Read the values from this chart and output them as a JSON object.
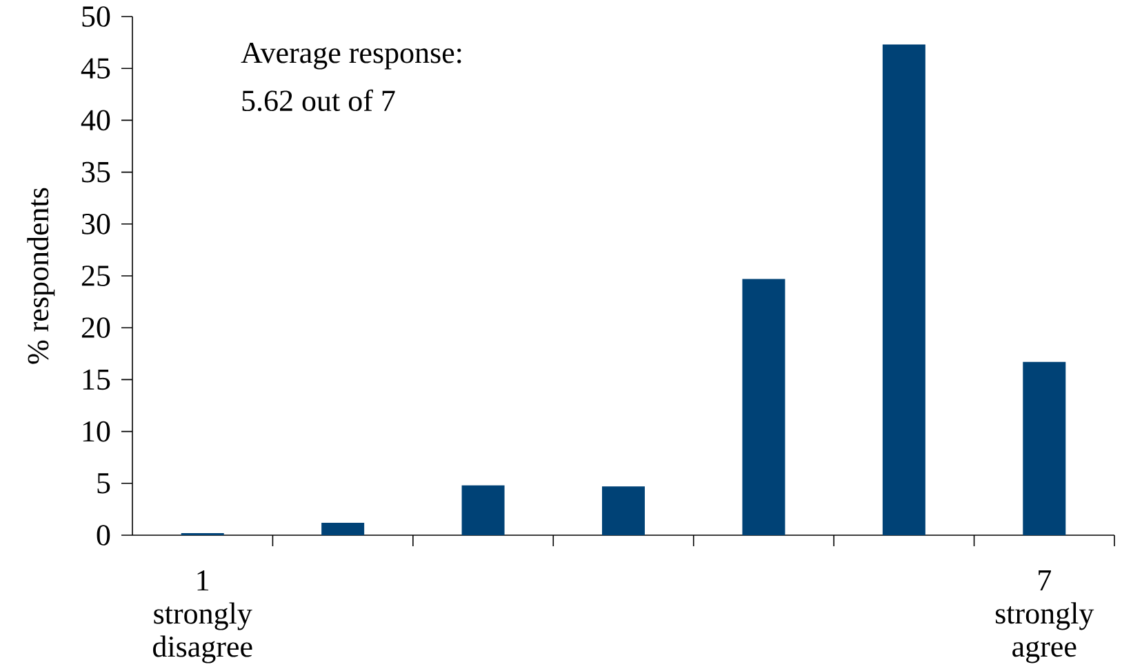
{
  "chart_data": {
    "type": "bar",
    "ylabel": "% respondents",
    "categories": [
      "1 strongly disagree",
      null,
      null,
      null,
      null,
      null,
      "7 strongly agree"
    ],
    "values": [
      0.2,
      1.2,
      4.8,
      4.7,
      24.7,
      47.3,
      16.7
    ],
    "color": "#004276",
    "ylim": [
      0,
      50
    ],
    "yticks": [
      0,
      5,
      10,
      15,
      20,
      25,
      30,
      35,
      40,
      45,
      50
    ],
    "annotations": [
      "Average response:",
      "5.62 out of 7"
    ],
    "grid": false
  }
}
